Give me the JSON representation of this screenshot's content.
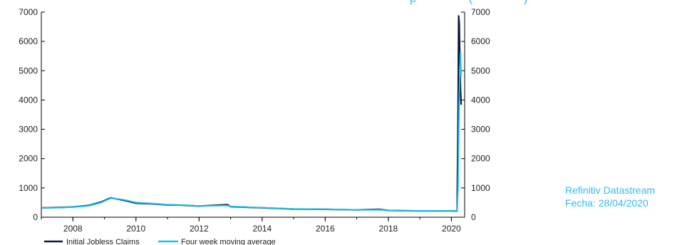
{
  "source": {
    "line1": "Refinitiv Datastream",
    "line2": "Fecha: 28/04/2020"
  },
  "title_fragment": {
    "part1": "p",
    "part2": "(",
    "part3": ")"
  },
  "colors": {
    "claims": "#0b1a3d",
    "moving_average": "#1fc0e8",
    "axis": "#000000",
    "source_text": "#33bbee"
  },
  "chart_data": {
    "type": "line",
    "title": "",
    "xlabel": "",
    "ylabel": "",
    "xlim": [
      2007.0,
      2020.42
    ],
    "ylim": [
      0,
      7000
    ],
    "y_ticks": [
      0,
      1000,
      2000,
      3000,
      4000,
      5000,
      6000,
      7000
    ],
    "y_tick_labels": [
      "0",
      "1000",
      "2000",
      "3000",
      "4000",
      "5000",
      "6000",
      "7000"
    ],
    "x_ticks": [
      2008,
      2010,
      2012,
      2014,
      2016,
      2018,
      2020
    ],
    "x_tick_labels": [
      "2008",
      "2010",
      "2012",
      "2014",
      "2016",
      "2018",
      "2020"
    ],
    "dual_y_axis": true,
    "grid": false,
    "legend_position": "bottom-left",
    "series": [
      {
        "name": "Initial Jobless Claims",
        "color": "#0b1a3d",
        "x": [
          2007.0,
          2007.5,
          2008.0,
          2008.5,
          2008.9,
          2009.2,
          2009.6,
          2010.0,
          2010.5,
          2011.0,
          2011.5,
          2012.0,
          2012.9,
          2013.0,
          2013.5,
          2014.0,
          2014.5,
          2015.0,
          2016.0,
          2017.0,
          2017.7,
          2018.0,
          2019.0,
          2020.0,
          2020.18,
          2020.21,
          2020.23,
          2020.25,
          2020.27,
          2020.29,
          2020.31
        ],
        "y": [
          320,
          330,
          350,
          400,
          520,
          660,
          580,
          480,
          460,
          420,
          410,
          380,
          430,
          360,
          340,
          320,
          300,
          280,
          270,
          250,
          270,
          230,
          215,
          215,
          210,
          3300,
          6870,
          6600,
          5200,
          4400,
          3840
        ]
      },
      {
        "name": "Four week moving average",
        "color": "#1fc0e8",
        "x": [
          2007.0,
          2007.5,
          2008.0,
          2008.5,
          2008.9,
          2009.2,
          2009.6,
          2010.0,
          2010.5,
          2011.0,
          2011.5,
          2012.0,
          2012.9,
          2013.0,
          2013.5,
          2014.0,
          2014.5,
          2015.0,
          2016.0,
          2017.0,
          2017.7,
          2018.0,
          2019.0,
          2020.0,
          2020.18,
          2020.21,
          2020.23,
          2020.25,
          2020.27,
          2020.29,
          2020.31
        ],
        "y": [
          320,
          325,
          345,
          390,
          500,
          650,
          600,
          500,
          470,
          430,
          415,
          385,
          400,
          370,
          345,
          325,
          305,
          285,
          272,
          252,
          255,
          232,
          218,
          214,
          212,
          1000,
          2800,
          4100,
          5100,
          5600,
          4800
        ]
      }
    ]
  }
}
